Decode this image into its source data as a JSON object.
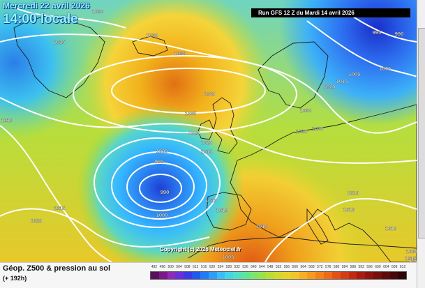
{
  "header": {
    "date_line": "Mercredi 22 avril 2026",
    "local_time": "14:00 locale",
    "run_banner": "Run GFS 12 Z du Mardi 14 avril 2026"
  },
  "map": {
    "copyright": "Copyright (c) 2026 Meteociel.fr",
    "isobar_labels": [
      "1030",
      "1015",
      "1030",
      "1030",
      "1040",
      "1035",
      "1025",
      "1020",
      "1015",
      "1005",
      "995",
      "990",
      "1000",
      "1015",
      "1020",
      "1005",
      "1010",
      "1010",
      "1010",
      "1010",
      "1015",
      "1020",
      "1030",
      "1030",
      "1030",
      "1005",
      "1005",
      "995",
      "990",
      "1010",
      "1010",
      "1010",
      "1005",
      "1015",
      "1020"
    ],
    "colors": {
      "deep_low": "#1f3fd6",
      "low": "#35b8ff",
      "mid": "#8ce048",
      "high": "#f2b21c",
      "very_high": "#e27014",
      "isobar": "#ffffff",
      "land_border": "#222222"
    }
  },
  "legend": {
    "title": "Géop. Z500 & pression au sol",
    "subtitle": "(+ 192h)",
    "scale_ticks": [
      "492",
      "496",
      "500",
      "504",
      "508",
      "512",
      "516",
      "520",
      "524",
      "528",
      "532",
      "536",
      "540",
      "544",
      "548",
      "552",
      "556",
      "560",
      "564",
      "568",
      "572",
      "576",
      "580",
      "584",
      "588",
      "592",
      "596",
      "600",
      "604",
      "608",
      "612"
    ],
    "scale_colors": [
      "#5a0f5a",
      "#7a1a86",
      "#8f2bb5",
      "#6a2fd8",
      "#3a3ae6",
      "#2058f0",
      "#1f7bf7",
      "#2f9cfa",
      "#3bbcf7",
      "#44d4ea",
      "#4fe0c4",
      "#5ee59a",
      "#7ae66e",
      "#9ae24a",
      "#b8de36",
      "#d2d92c",
      "#e7d22a",
      "#f3c426",
      "#f7b022",
      "#f79a1e",
      "#f3821a",
      "#ec6a18",
      "#e25216",
      "#d43c14",
      "#c22812",
      "#a81c10",
      "#8e140e",
      "#76100c",
      "#5e0c0a",
      "#46080a",
      "#2e0608"
    ]
  }
}
